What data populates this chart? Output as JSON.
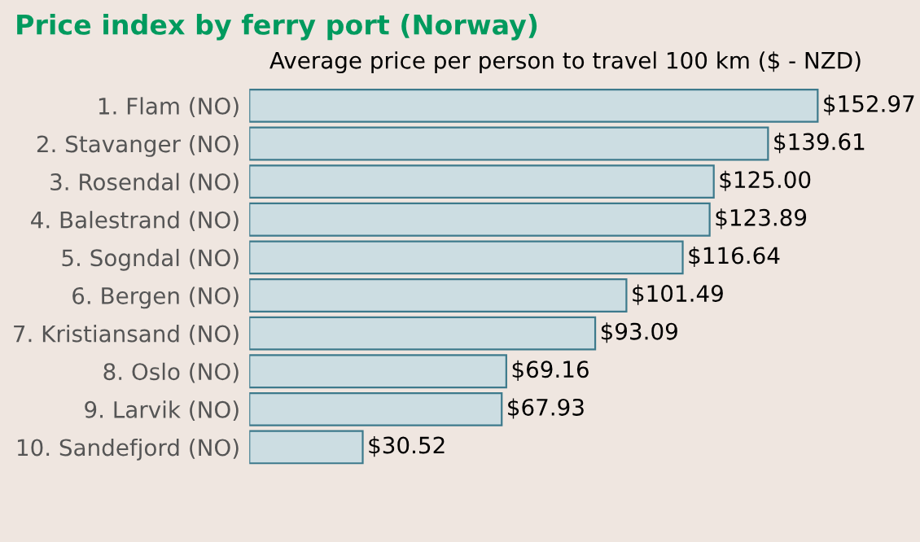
{
  "chart_data": {
    "type": "bar",
    "orientation": "horizontal",
    "title": "Price index by ferry port (Norway)",
    "subtitle": "Average price per person to travel 100 km ($ - NZD)",
    "categories": [
      "1. Flam (NO)",
      "2. Stavanger (NO)",
      "3. Rosendal (NO)",
      "4. Balestrand (NO)",
      "5. Sogndal (NO)",
      "6. Bergen (NO)",
      "7. Kristiansand (NO)",
      "8. Oslo (NO)",
      "9. Larvik (NO)",
      "10. Sandefjord (NO)"
    ],
    "values": [
      152.97,
      139.61,
      125.0,
      123.89,
      116.64,
      101.49,
      93.09,
      69.16,
      67.93,
      30.52
    ],
    "value_labels": [
      "$152.97",
      "$139.61",
      "$125.00",
      "$123.89",
      "$116.64",
      "$101.49",
      "$93.09",
      "$69.16",
      "$67.93",
      "$30.52"
    ],
    "color": "#ccdde2"
  }
}
